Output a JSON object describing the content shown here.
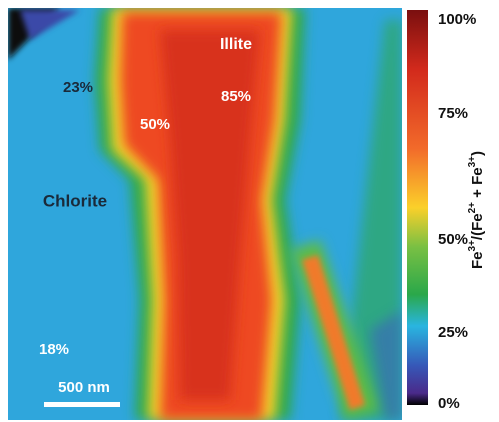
{
  "image": {
    "annotations": {
      "illite": "Illite",
      "illite_value": "85%",
      "edge_value": "50%",
      "upper_value": "23%",
      "chlorite": "Chlorite",
      "lower_value": "18%"
    },
    "scale_bar": "500 nm"
  },
  "colorbar": {
    "ticks": [
      "100%",
      "75%",
      "50%",
      "25%",
      "0%"
    ],
    "label_parts": [
      "Fe",
      "3+",
      "/(Fe",
      "2+",
      " + Fe",
      "3+",
      ")"
    ]
  }
}
